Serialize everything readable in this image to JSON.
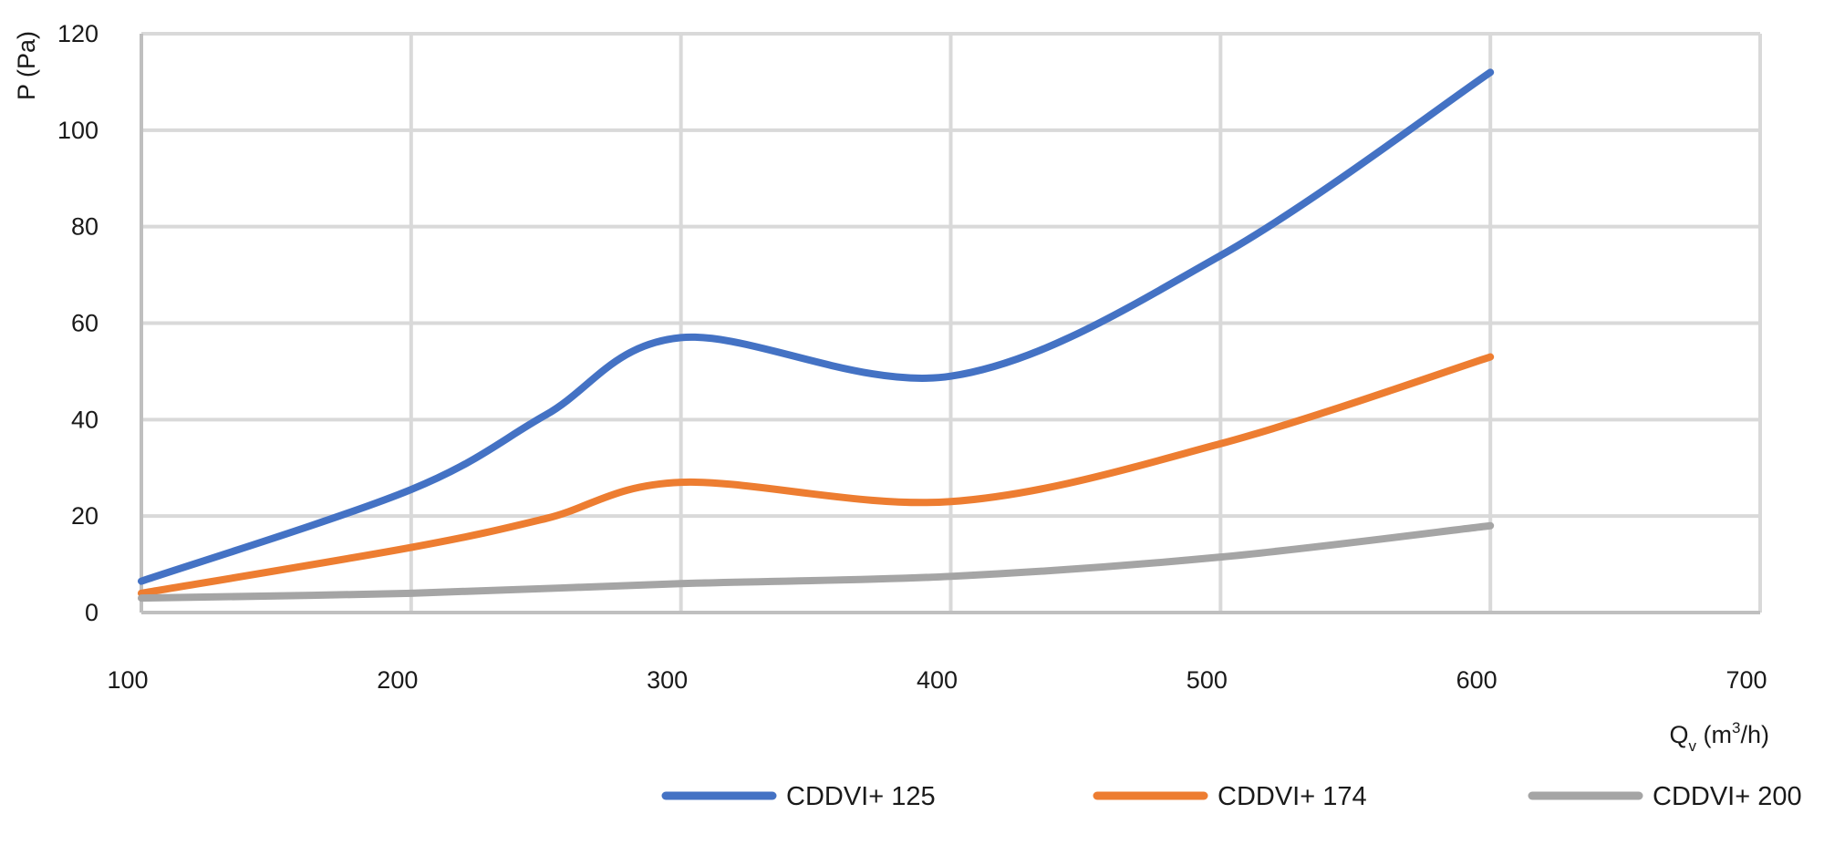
{
  "chart_data": {
    "type": "line",
    "ylabel": "P (Pa)",
    "xlabel": {
      "base": "Q",
      "sub": "v",
      "unit_open": " (m",
      "sup": "3",
      "unit_close": "/h)"
    },
    "xlim": [
      100,
      700
    ],
    "ylim": [
      0,
      120
    ],
    "xticks": [
      100,
      200,
      300,
      400,
      500,
      600,
      700
    ],
    "yticks": [
      0,
      20,
      40,
      60,
      80,
      100,
      120
    ],
    "grid": true,
    "legend": "bottom",
    "series": [
      {
        "name": "CDDVI+ 125",
        "color": "#4472C4",
        "points": [
          [
            100,
            6.5
          ],
          [
            200,
            25.5
          ],
          [
            250,
            41
          ],
          [
            300,
            57
          ],
          [
            400,
            49
          ],
          [
            500,
            74
          ],
          [
            600,
            112
          ]
        ]
      },
      {
        "name": "CDDVI+ 174",
        "color": "#ED7D31",
        "points": [
          [
            100,
            4
          ],
          [
            200,
            13.5
          ],
          [
            250,
            19.5
          ],
          [
            300,
            27
          ],
          [
            400,
            23
          ],
          [
            500,
            35
          ],
          [
            600,
            53
          ]
        ]
      },
      {
        "name": "CDDVI+ 200",
        "color": "#A5A5A5",
        "points": [
          [
            100,
            3
          ],
          [
            200,
            4
          ],
          [
            300,
            6
          ],
          [
            400,
            7.5
          ],
          [
            500,
            11.5
          ],
          [
            600,
            18
          ]
        ]
      }
    ]
  }
}
